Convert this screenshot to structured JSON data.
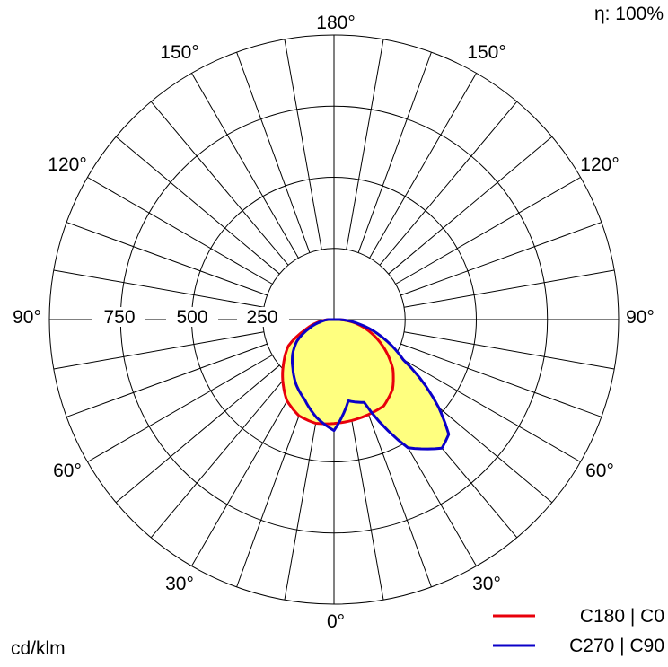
{
  "chart_data": {
    "type": "polar",
    "efficiency_label": "η: 100%",
    "unit_label": "cd/klm",
    "radial_ticks": [
      250,
      500,
      750
    ],
    "radial_tick_labels": [
      "250",
      "500",
      "750"
    ],
    "rmax": 1000,
    "angle_labels": {
      "bottom": "0°",
      "top": "180°",
      "left_90": "90°",
      "right_90": "90°",
      "left_30": "30°",
      "left_60": "60°",
      "left_120": "120°",
      "left_150": "150°",
      "right_30": "30°",
      "right_60": "60°",
      "right_120": "120°",
      "right_150": "150°"
    },
    "series": [
      {
        "name": "C180 | C0",
        "color": "#e8000b",
        "right": [
          [
            0,
            365
          ],
          [
            10,
            360
          ],
          [
            20,
            355
          ],
          [
            30,
            350
          ],
          [
            40,
            320
          ],
          [
            50,
            270
          ],
          [
            60,
            205
          ],
          [
            70,
            140
          ],
          [
            80,
            80
          ],
          [
            90,
            20
          ]
        ],
        "left": [
          [
            0,
            365
          ],
          [
            10,
            370
          ],
          [
            20,
            360
          ],
          [
            30,
            330
          ],
          [
            40,
            280
          ],
          [
            50,
            230
          ],
          [
            60,
            185
          ],
          [
            70,
            110
          ],
          [
            80,
            60
          ],
          [
            90,
            20
          ]
        ]
      },
      {
        "name": "C270 | C90",
        "color": "#0b00c8",
        "right": [
          [
            0,
            390
          ],
          [
            10,
            290
          ],
          [
            20,
            310
          ],
          [
            30,
            520
          ],
          [
            40,
            590
          ],
          [
            45,
            570
          ],
          [
            50,
            480
          ],
          [
            60,
            280
          ],
          [
            70,
            180
          ],
          [
            80,
            90
          ],
          [
            90,
            20
          ]
        ],
        "left": [
          [
            0,
            390
          ],
          [
            10,
            350
          ],
          [
            20,
            300
          ],
          [
            30,
            265
          ],
          [
            40,
            225
          ],
          [
            50,
            190
          ],
          [
            60,
            150
          ],
          [
            70,
            95
          ],
          [
            80,
            50
          ],
          [
            90,
            20
          ]
        ]
      }
    ]
  }
}
